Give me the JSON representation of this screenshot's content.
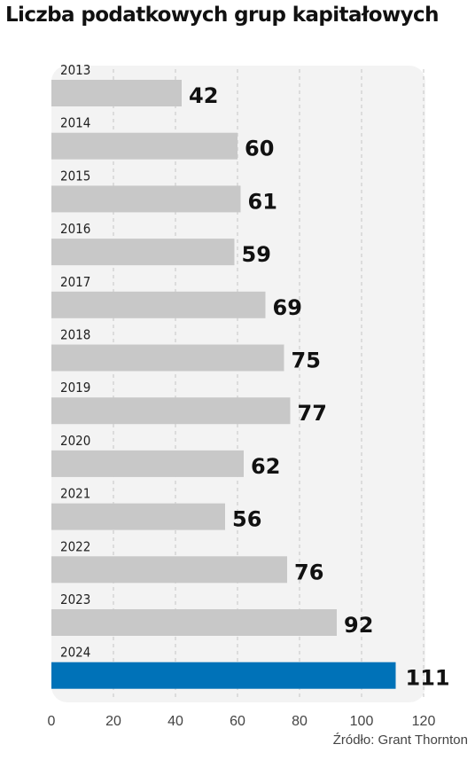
{
  "chart_data": {
    "type": "bar",
    "orientation": "horizontal",
    "title": "Liczba podatkowych grup kapitałowych",
    "categories": [
      "2013",
      "2014",
      "2015",
      "2016",
      "2017",
      "2018",
      "2019",
      "2020",
      "2021",
      "2022",
      "2023",
      "2024"
    ],
    "values": [
      42,
      60,
      61,
      59,
      69,
      75,
      77,
      62,
      56,
      76,
      92,
      111
    ],
    "xlim": [
      0,
      120
    ],
    "xticks": [
      "0",
      "20",
      "40",
      "60",
      "80",
      "100",
      "120"
    ],
    "grid": "vertical dashed",
    "highlight": "2024",
    "colors": {
      "bar": "#c8c8c8",
      "highlight": "#0072b8",
      "panel": "#f3f3f3",
      "grid": "#c4c4c4"
    },
    "source": "Źródło: Grant Thornton"
  }
}
